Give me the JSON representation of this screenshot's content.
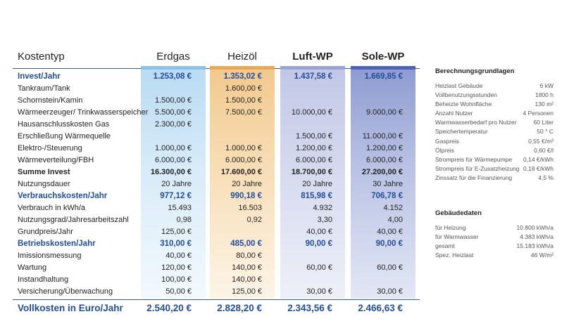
{
  "table": {
    "header": {
      "kostentyp": "Kostentyp",
      "erdgas": "Erdgas",
      "heizoel": "Heizöl",
      "luft_wp": "Luft-WP",
      "sole_wp": "Sole-WP"
    },
    "column_colors": {
      "erdgas": "#8cc2ea",
      "heizoel": "#e9a858",
      "luft_wp": "#9aa3d6",
      "sole_wp": "#4e63b4",
      "section_text": "#1f4e9c"
    },
    "rows": [
      {
        "label": "Invest/Jahr",
        "values": [
          "1.253,08 €",
          "1.353,02 €",
          "1.437,58 €",
          "1.669,85 €"
        ],
        "style": "section"
      },
      {
        "label": "Tankraum/Tank",
        "values": [
          "",
          "1.600,00 €",
          "",
          ""
        ],
        "style": "normal"
      },
      {
        "label": "Schornstein/Kamin",
        "values": [
          "1.500,00 €",
          "1.500,00 €",
          "",
          ""
        ],
        "style": "normal"
      },
      {
        "label": "Wärmeerzeuger/ Trinkwasserspeicher",
        "values": [
          "5.500,00 €",
          "7.500,00 €",
          "10.000,00 €",
          "9.000,00 €"
        ],
        "style": "normal"
      },
      {
        "label": "Hausanschlusskosten Gas",
        "values": [
          "2.300,00 €",
          "",
          "",
          ""
        ],
        "style": "normal"
      },
      {
        "label": "Erschließung Wärmequelle",
        "values": [
          "",
          "",
          "1.500,00 €",
          "11.000,00 €"
        ],
        "style": "normal"
      },
      {
        "label": "Elektro-/Steuerung",
        "values": [
          "1.000,00 €",
          "1.000,00 €",
          "1.200,00 €",
          "1.200,00 €"
        ],
        "style": "normal"
      },
      {
        "label": "Wärmeverteilung/FBH",
        "values": [
          "6.000,00 €",
          "6.000,00 €",
          "6.000,00 €",
          "6.000,00 €"
        ],
        "style": "normal"
      },
      {
        "label": "Summe Invest",
        "values": [
          "16.300,00 €",
          "17.600,00 €",
          "18.700,00 €",
          "27.200,00 €"
        ],
        "style": "bold"
      },
      {
        "label": "Nutzungsdauer",
        "values": [
          "20 Jahre",
          "20 Jahre",
          "20 Jahre",
          "30 Jahre"
        ],
        "style": "normal"
      },
      {
        "label": "Verbrauchskosten/Jahr",
        "values": [
          "977,12 €",
          "990,18 €",
          "815,98 €",
          "706,78 €"
        ],
        "style": "section"
      },
      {
        "label": "Verbrauch in kWh/a",
        "values": [
          "15.493",
          "16.503",
          "4.932",
          "4.152"
        ],
        "style": "normal"
      },
      {
        "label": "Nutzungsgrad/Jahresarbeitszahl",
        "values": [
          "0,98",
          "0,92",
          "3,30",
          "4,00"
        ],
        "style": "normal"
      },
      {
        "label": "Grundpreis/Jahr",
        "values": [
          "125,00 €",
          "",
          "40,00 €",
          "40,00 €"
        ],
        "style": "normal"
      },
      {
        "label": "Betriebskosten/Jahr",
        "values": [
          "310,00 €",
          "485,00 €",
          "90,00 €",
          "90,00 €"
        ],
        "style": "section"
      },
      {
        "label": "Imissionsmessung",
        "values": [
          "40,00 €",
          "80,00 €",
          "",
          ""
        ],
        "style": "normal"
      },
      {
        "label": "Wartung",
        "values": [
          "120,00 €",
          "140,00 €",
          "60,00 €",
          "60,00 €"
        ],
        "style": "normal"
      },
      {
        "label": "Instandhaltung",
        "values": [
          "100,00 €",
          "140,00 €",
          "",
          ""
        ],
        "style": "normal"
      },
      {
        "label": "Versicherung/Überwachung",
        "values": [
          "50,00 €",
          "125,00 €",
          "30,00 €",
          "30,00 €"
        ],
        "style": "normal"
      }
    ],
    "total": {
      "label": "Vollkosten in Euro/Jahr",
      "values": [
        "2.540,20 €",
        "2.828,20 €",
        "2.343,56 €",
        "2.466,63 €"
      ]
    }
  },
  "berechnung": {
    "title": "Berechnungsgrundlagen",
    "items": [
      {
        "label": "Heizlast Gebäude",
        "value": "6 kW"
      },
      {
        "label": "Vollbenutzungsstunden",
        "value": "1800 h"
      },
      {
        "label": "Beheizte Wohnfläche",
        "value": "130 m²"
      },
      {
        "label": "Anzahl Nutzer",
        "value": "4 Personen"
      },
      {
        "label": "Warmwasserbedarf pro Nutzer",
        "value": "60 Liter"
      },
      {
        "label": "Speichertemperatur",
        "value": "50 ° C"
      },
      {
        "label": "Gaspreis",
        "value": "0,55 €/m³"
      },
      {
        "label": "Ölpreis",
        "value": "0,60 €/l"
      },
      {
        "label": "Strompreis für Wärmepumpe",
        "value": "0,14 €/kWh"
      },
      {
        "label": "Strompreis für E-Zusatzheizung",
        "value": "0,18 €/kWh"
      },
      {
        "label": "Zinssatz für die Finanzierung",
        "value": "4,5 %"
      }
    ]
  },
  "gebaeude": {
    "title": "Gebäudedaten",
    "items": [
      {
        "label": "für Heizung",
        "value": "10.800 kWh/a"
      },
      {
        "label": "für Warmwasser",
        "value": "4.383 kWh/a"
      },
      {
        "label": "gesamt",
        "value": "15.183 kWh/a"
      },
      {
        "label": "Spez. Heizlast",
        "value": "46 W/m²"
      }
    ]
  }
}
